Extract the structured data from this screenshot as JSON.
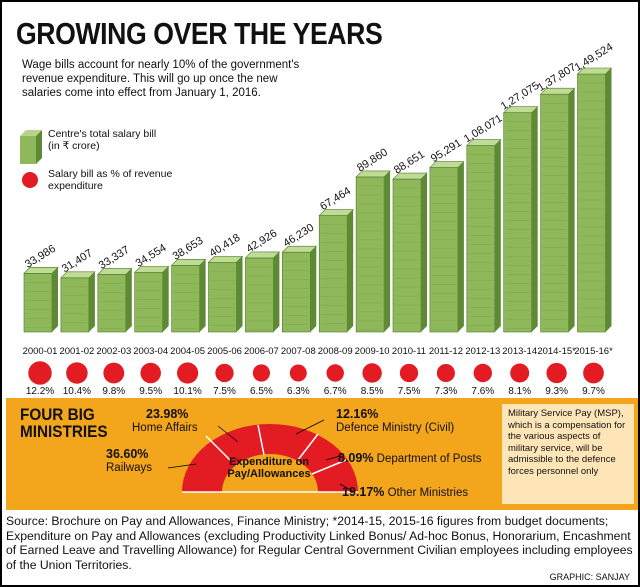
{
  "title": "GROWING OVER THE YEARS",
  "subtitle": "Wage bills account for nearly 10% of the government's revenue expenditure. This will go up once the new salaries come into effect from January 1, 2016.",
  "legend": {
    "bar_label": "Centre's total salary bill (in ₹ crore)",
    "dot_label": "Salary bill as % of revenue expenditure"
  },
  "colors": {
    "bar": "#8fb85a",
    "dot": "#e31b23",
    "panel": "#f3a51c",
    "msp_box": "#fde5b8"
  },
  "chart_data": {
    "type": "bar",
    "categories": [
      "2000-01",
      "2001-02",
      "2002-03",
      "2003-04",
      "2004-05",
      "2005-06",
      "2006-07",
      "2007-08",
      "2008-09",
      "2009-10",
      "2010-11",
      "2011-12",
      "2012-13",
      "2013-14",
      "2014-15*",
      "2015-16*"
    ],
    "value_labels": [
      "33,986",
      "31,407",
      "33,337",
      "34,554",
      "38,653",
      "40,418",
      "42,926",
      "46,230",
      "67,464",
      "89,860",
      "88,651",
      "95,291",
      "1,08,071",
      "1,27,075",
      "1,37,807",
      "1,49,524"
    ],
    "series": [
      {
        "name": "Centre's total salary bill (in ₹ crore)",
        "values": [
          33986,
          31407,
          33337,
          34554,
          38653,
          40418,
          42926,
          46230,
          67464,
          89860,
          88651,
          95291,
          108071,
          127075,
          137807,
          149524
        ]
      },
      {
        "name": "Salary bill as % of revenue expenditure",
        "values": [
          12.2,
          10.4,
          9.8,
          9.5,
          10.1,
          7.5,
          6.5,
          6.3,
          6.7,
          8.5,
          7.5,
          7.3,
          7.6,
          8.1,
          9.3,
          9.7
        ]
      }
    ],
    "percent_labels": [
      "12.2%",
      "10.4%",
      "9.8%",
      "9.5%",
      "10.1%",
      "7.5%",
      "6.5%",
      "6.3%",
      "6.7%",
      "8.5%",
      "7.5%",
      "7.3%",
      "7.6%",
      "8.1%",
      "9.3%",
      "9.7%"
    ]
  },
  "ministries": {
    "title_line1": "FOUR BIG",
    "title_line2": "MINISTRIES",
    "center_line1": "Expenditure on",
    "center_line2": "Pay/Allowances",
    "items": [
      {
        "pct": "23.98%",
        "name": "Home Affairs"
      },
      {
        "pct": "36.60%",
        "name": "Railways"
      },
      {
        "pct": "12.16%",
        "name": "Defence Ministry (Civil)"
      },
      {
        "pct": "8.09%",
        "name": "Department of Posts"
      },
      {
        "pct": "19.17%",
        "name": "Other Ministries"
      }
    ],
    "msp_note": "Military Service Pay (MSP), which is a compensation for the various aspects of military service, will be admissible to the defence forces personnel only"
  },
  "footer": "Source: Brochure on Pay and Allowances, Finance Ministry; *2014-15, 2015-16 figures from budget documents; Expenditure on Pay and Allowances (excluding Productivity Linked Bonus/ Ad-hoc Bonus, Honorarium, Encashment of Earned Leave and Travelling Allowance) for Regular Central Government Civilian employees including employees of the Union Territories.",
  "credit": "GRAPHIC: SANJAY"
}
